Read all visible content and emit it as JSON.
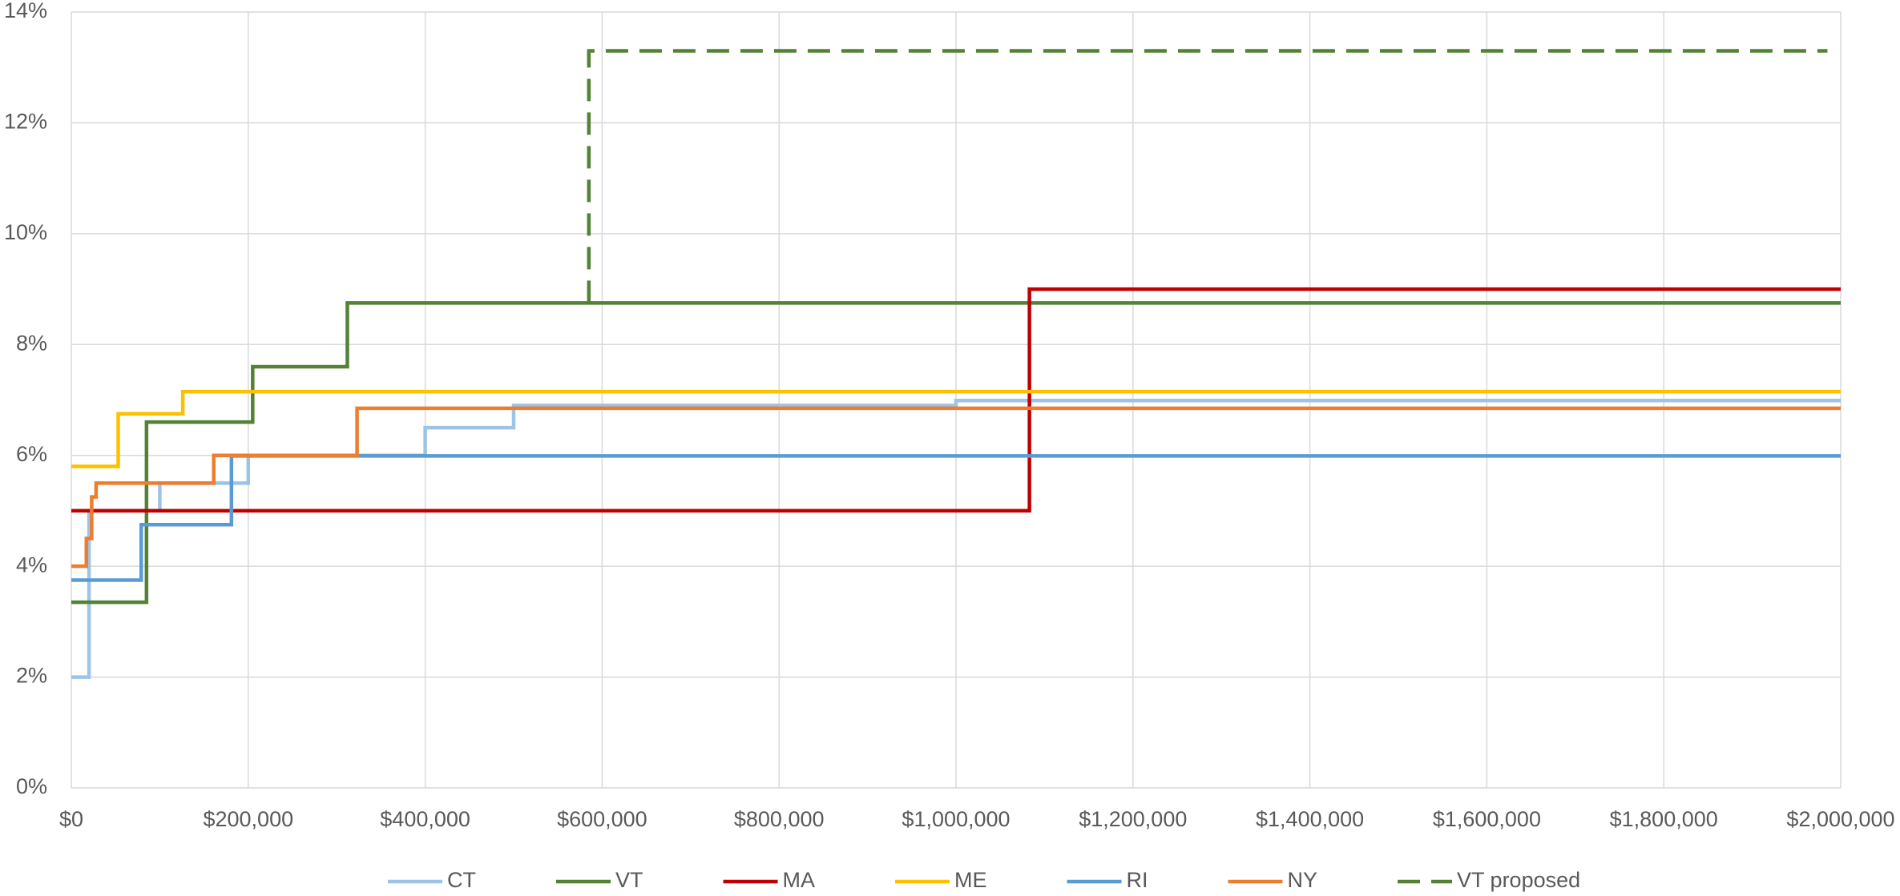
{
  "chart_data": {
    "type": "line",
    "step": true,
    "grid": true,
    "legend": "bottom",
    "xlim": [
      0,
      2000000
    ],
    "ylim": [
      0,
      14
    ],
    "xticks": [
      {
        "value": 0,
        "label": "$0"
      },
      {
        "value": 200000,
        "label": "$200,000"
      },
      {
        "value": 400000,
        "label": "$400,000"
      },
      {
        "value": 600000,
        "label": "$600,000"
      },
      {
        "value": 800000,
        "label": "$800,000"
      },
      {
        "value": 1000000,
        "label": "$1,000,000"
      },
      {
        "value": 1200000,
        "label": "$1,200,000"
      },
      {
        "value": 1400000,
        "label": "$1,400,000"
      },
      {
        "value": 1600000,
        "label": "$1,600,000"
      },
      {
        "value": 1800000,
        "label": "$1,800,000"
      },
      {
        "value": 2000000,
        "label": "$2,000,000"
      }
    ],
    "yticks": [
      {
        "value": 0,
        "label": "0%"
      },
      {
        "value": 2,
        "label": "2%"
      },
      {
        "value": 4,
        "label": "4%"
      },
      {
        "value": 6,
        "label": "6%"
      },
      {
        "value": 8,
        "label": "8%"
      },
      {
        "value": 10,
        "label": "10%"
      },
      {
        "value": 12,
        "label": "12%"
      },
      {
        "value": 14,
        "label": "14%"
      }
    ],
    "series": [
      {
        "name": "CT",
        "color": "#9dc3e6",
        "x": [
          0,
          20000,
          100000,
          200000,
          400000,
          500000,
          1000000,
          2000000
        ],
        "values": [
          2,
          5,
          5.5,
          6,
          6.5,
          6.9,
          6.99,
          6.99
        ]
      },
      {
        "name": "VT",
        "color": "#548235",
        "x": [
          0,
          85000,
          205000,
          312000,
          2000000
        ],
        "values": [
          3.35,
          6.6,
          7.6,
          8.75,
          8.75
        ]
      },
      {
        "name": "MA",
        "color": "#c00000",
        "x": [
          0,
          1083000,
          2000000
        ],
        "values": [
          5,
          9,
          9
        ]
      },
      {
        "name": "ME",
        "color": "#ffc000",
        "x": [
          0,
          53000,
          126000,
          2000000
        ],
        "values": [
          5.8,
          6.75,
          7.15,
          7.15
        ]
      },
      {
        "name": "RI",
        "color": "#5b9bd5",
        "x": [
          0,
          79000,
          181000,
          2000000
        ],
        "values": [
          3.75,
          4.75,
          5.99,
          5.99
        ]
      },
      {
        "name": "NY",
        "color": "#ed7d31",
        "x": [
          0,
          17000,
          23000,
          28000,
          161000,
          323000,
          2000000
        ],
        "values": [
          4,
          4.5,
          5.25,
          5.5,
          6,
          6.85,
          6.85
        ]
      },
      {
        "name": "VT proposed",
        "color": "#548235",
        "dashed": true,
        "x": [
          585000,
          585000,
          1985000
        ],
        "values": [
          8.75,
          13.3,
          13.3
        ]
      }
    ]
  }
}
